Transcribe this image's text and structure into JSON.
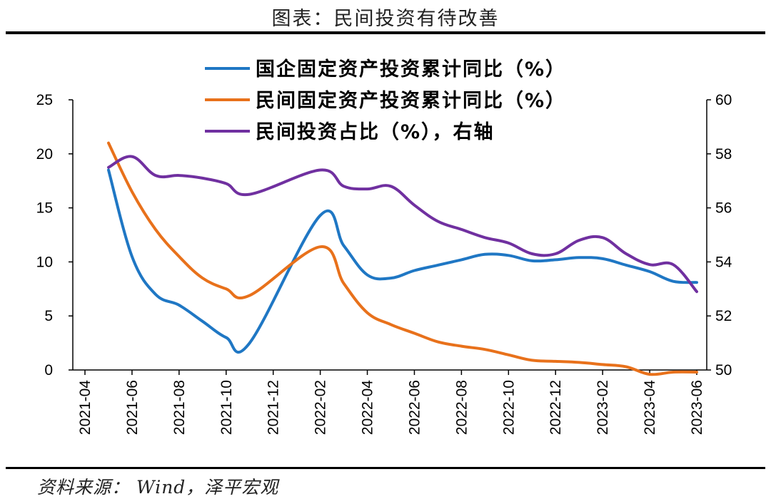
{
  "title": "图表：民间投资有待改善",
  "source": "资料来源： Wind，泽平宏观",
  "chart_data": {
    "type": "line",
    "x": [
      "2021-04",
      "2021-05",
      "2021-06",
      "2021-07",
      "2021-08",
      "2021-09",
      "2021-10",
      "2021-11",
      "2021-12",
      "2022-01",
      "2022-02",
      "2022-03",
      "2022-04",
      "2022-05",
      "2022-06",
      "2022-07",
      "2022-08",
      "2022-09",
      "2022-10",
      "2022-11",
      "2022-12",
      "2023-01",
      "2023-02",
      "2023-03",
      "2023-04",
      "2023-05",
      "2023-06"
    ],
    "x_ticks": [
      "2021-04",
      "2021-06",
      "2021-08",
      "2021-10",
      "2021-12",
      "2022-02",
      "2022-04",
      "2022-06",
      "2022-08",
      "2022-10",
      "2022-12",
      "2023-02",
      "2023-04",
      "2023-06"
    ],
    "y_left": {
      "min": 0,
      "max": 25,
      "ticks": [
        "0",
        "5",
        "10",
        "15",
        "20",
        "25"
      ]
    },
    "y_right": {
      "min": 50,
      "max": 60,
      "ticks": [
        "50",
        "52",
        "54",
        "56",
        "58",
        "60"
      ]
    },
    "series": [
      {
        "name": "国企固定资产投资累计同比（%）",
        "color": "#1F77C4",
        "axis": "left",
        "values": [
          null,
          18.5,
          10.5,
          7.0,
          6.0,
          4.5,
          3.0,
          2.5,
          null,
          null,
          14.3,
          11.5,
          8.8,
          8.5,
          9.2,
          9.7,
          10.2,
          10.7,
          10.6,
          10.1,
          10.2,
          10.4,
          10.3,
          9.7,
          9.1,
          8.2,
          8.1
        ]
      },
      {
        "name": "民间固定资产投资累计同比（%）",
        "color": "#E8711B",
        "axis": "left",
        "values": [
          null,
          21.0,
          16.5,
          13.0,
          10.5,
          8.5,
          7.5,
          6.9,
          null,
          null,
          11.4,
          8.0,
          5.3,
          4.2,
          3.4,
          2.6,
          2.2,
          1.9,
          1.4,
          0.9,
          0.8,
          0.7,
          0.5,
          0.3,
          -0.4,
          -0.2,
          -0.2
        ]
      },
      {
        "name": "民间投资占比（%），右轴",
        "color": "#7030A0",
        "axis": "right",
        "values": [
          null,
          57.5,
          57.9,
          57.2,
          57.2,
          57.1,
          56.9,
          56.5,
          null,
          null,
          57.4,
          56.8,
          56.7,
          56.8,
          56.1,
          55.5,
          55.2,
          54.9,
          54.7,
          54.3,
          54.3,
          54.8,
          54.9,
          54.3,
          53.9,
          53.9,
          52.9
        ]
      }
    ]
  }
}
